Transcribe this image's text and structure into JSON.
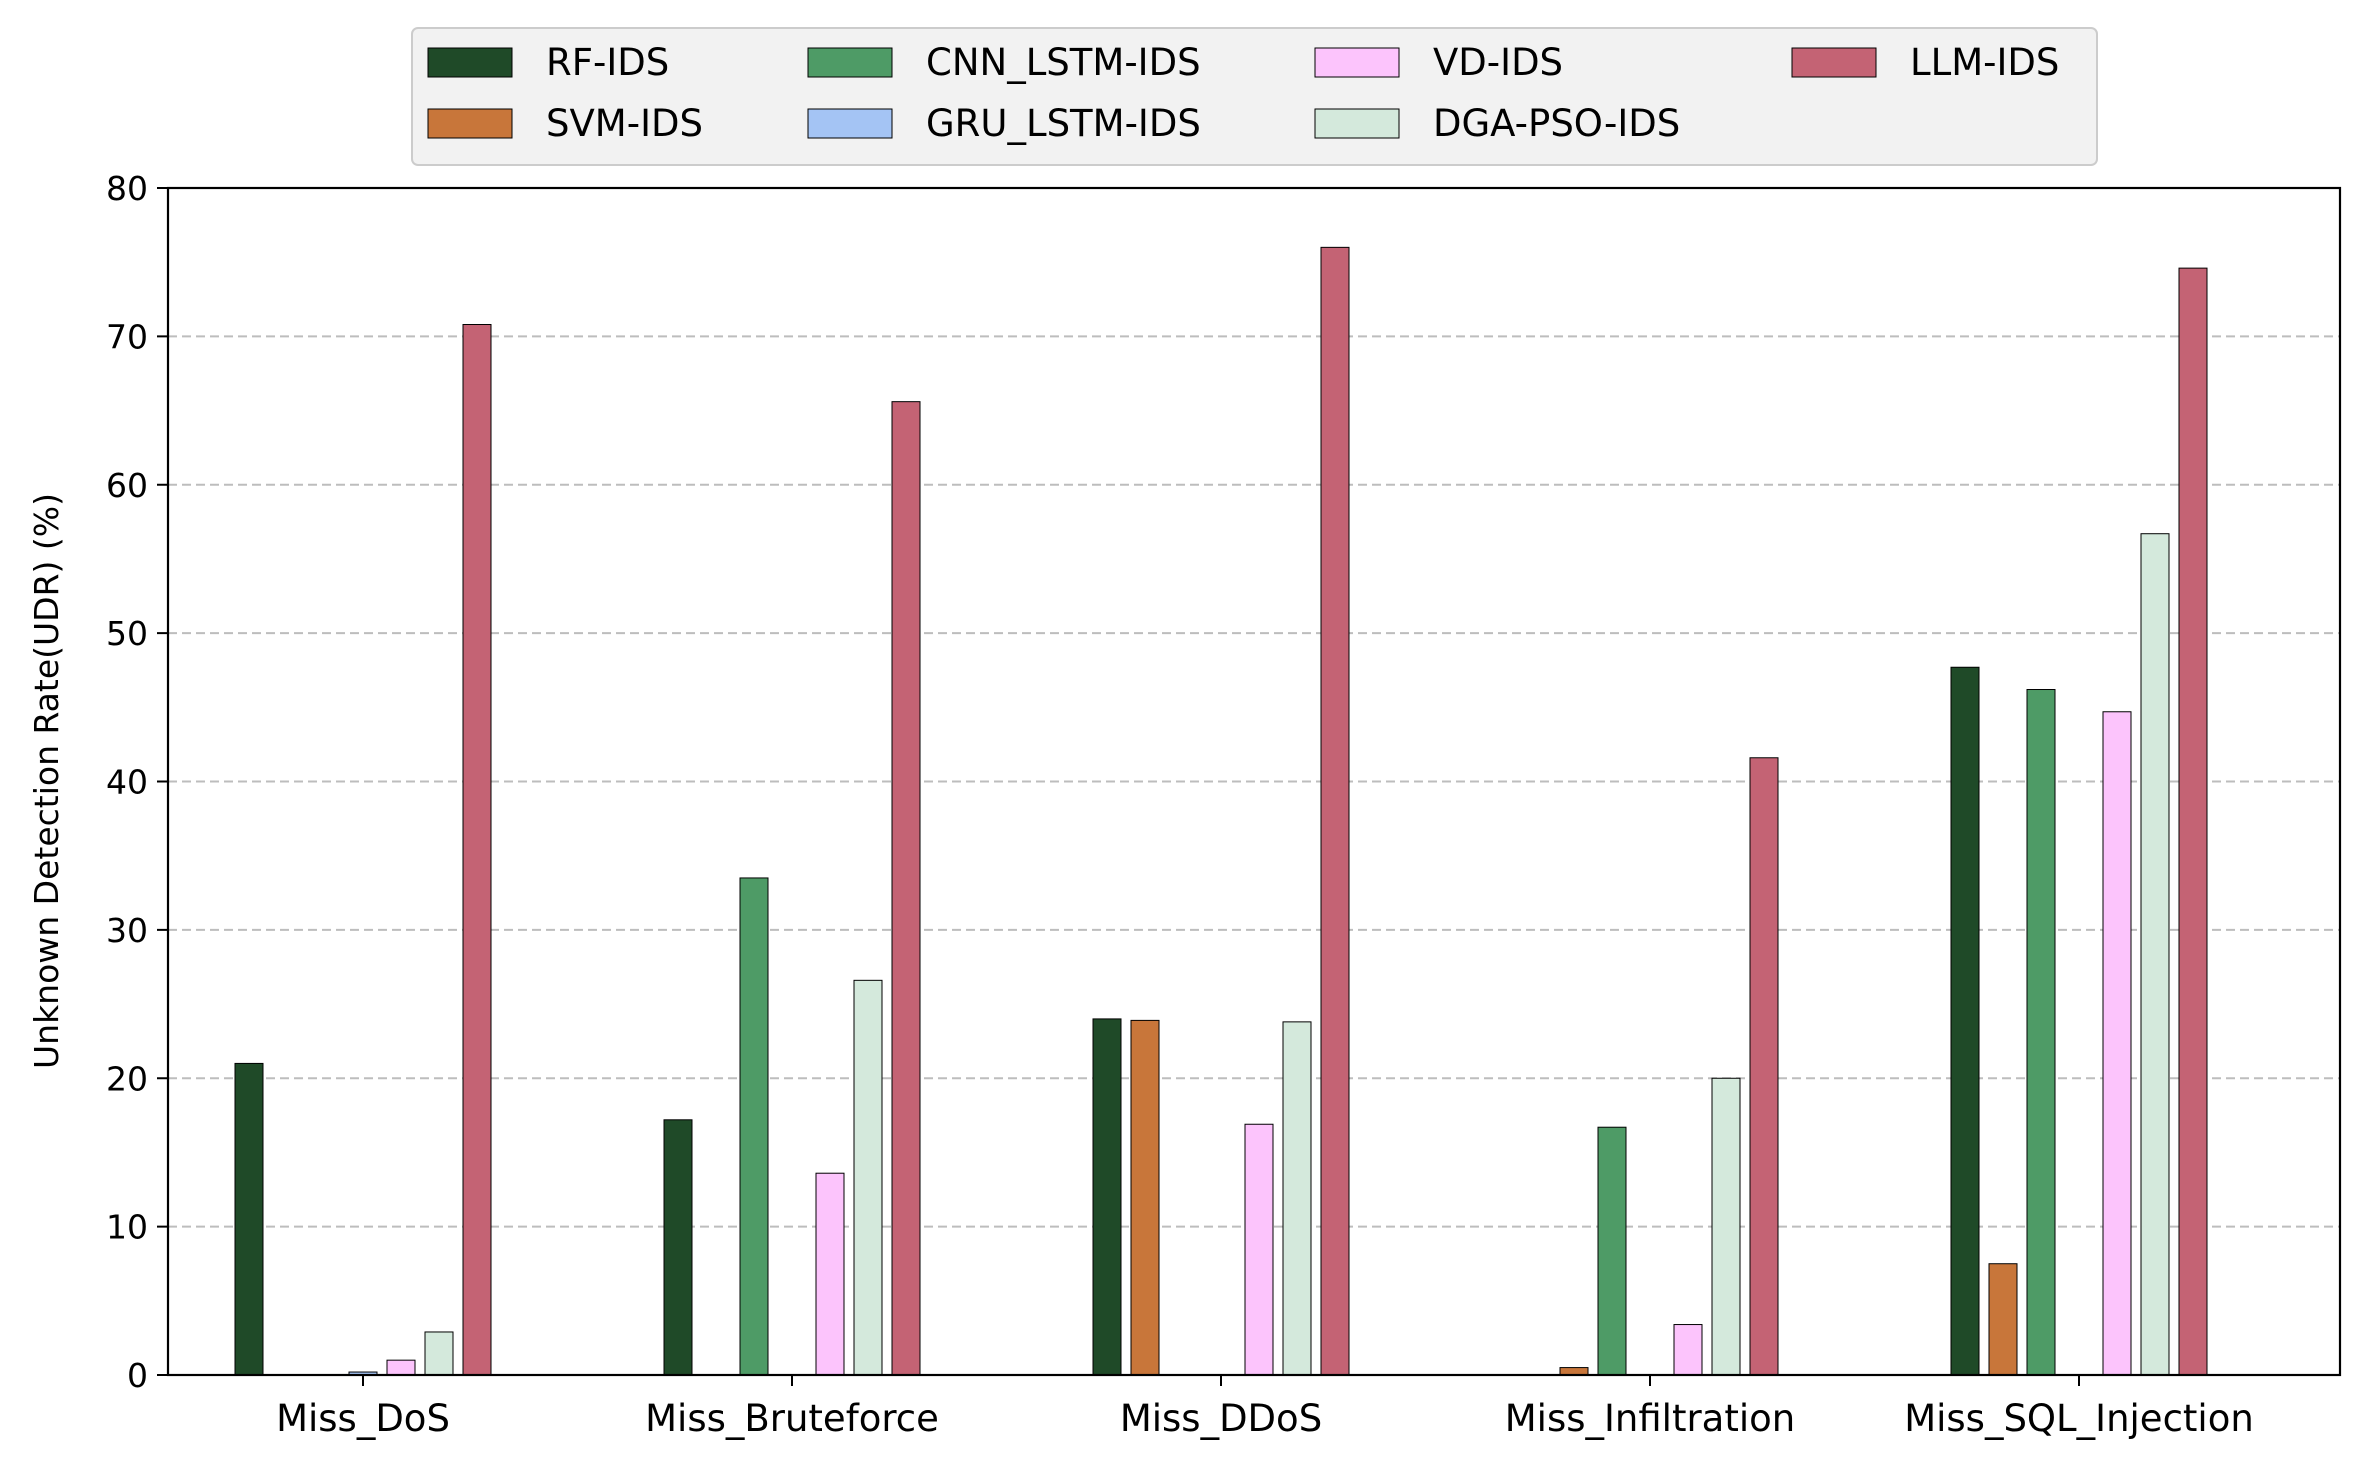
{
  "chart_data": {
    "type": "bar",
    "categories": [
      "Miss_DoS",
      "Miss_Bruteforce",
      "Miss_DDoS",
      "Miss_Infiltration",
      "Miss_SQL_Injection"
    ],
    "series": [
      {
        "name": "RF-IDS",
        "color": "#1f4a28",
        "values": [
          21.0,
          17.2,
          24.0,
          0.0,
          47.7
        ]
      },
      {
        "name": "SVM-IDS",
        "color": "#c8763a",
        "values": [
          0.0,
          0.0,
          23.9,
          0.5,
          7.5
        ]
      },
      {
        "name": "CNN_LSTM-IDS",
        "color": "#4e9b66",
        "values": [
          0.0,
          33.5,
          0.0,
          16.7,
          46.2
        ]
      },
      {
        "name": "GRU_LSTM-IDS",
        "color": "#a4c4f4",
        "values": [
          0.2,
          0.0,
          0.0,
          0.0,
          0.0
        ]
      },
      {
        "name": "VD-IDS",
        "color": "#fcc4fc",
        "values": [
          1.0,
          13.6,
          16.9,
          3.4,
          44.7
        ]
      },
      {
        "name": "DGA-PSO-IDS",
        "color": "#d4e9dc",
        "values": [
          2.9,
          26.6,
          23.8,
          20.0,
          56.7
        ]
      },
      {
        "name": "LLM-IDS",
        "color": "#c46374",
        "values": [
          70.8,
          65.6,
          76.0,
          41.6,
          74.6
        ]
      }
    ],
    "xlabel": "",
    "ylabel": "Unknown Detection Rate(UDR) (%)",
    "ylim": [
      0,
      80
    ],
    "yticks": [
      0,
      10,
      20,
      30,
      40,
      50,
      60,
      70,
      80
    ],
    "grid": "y-dashed",
    "legend": "top-center"
  }
}
